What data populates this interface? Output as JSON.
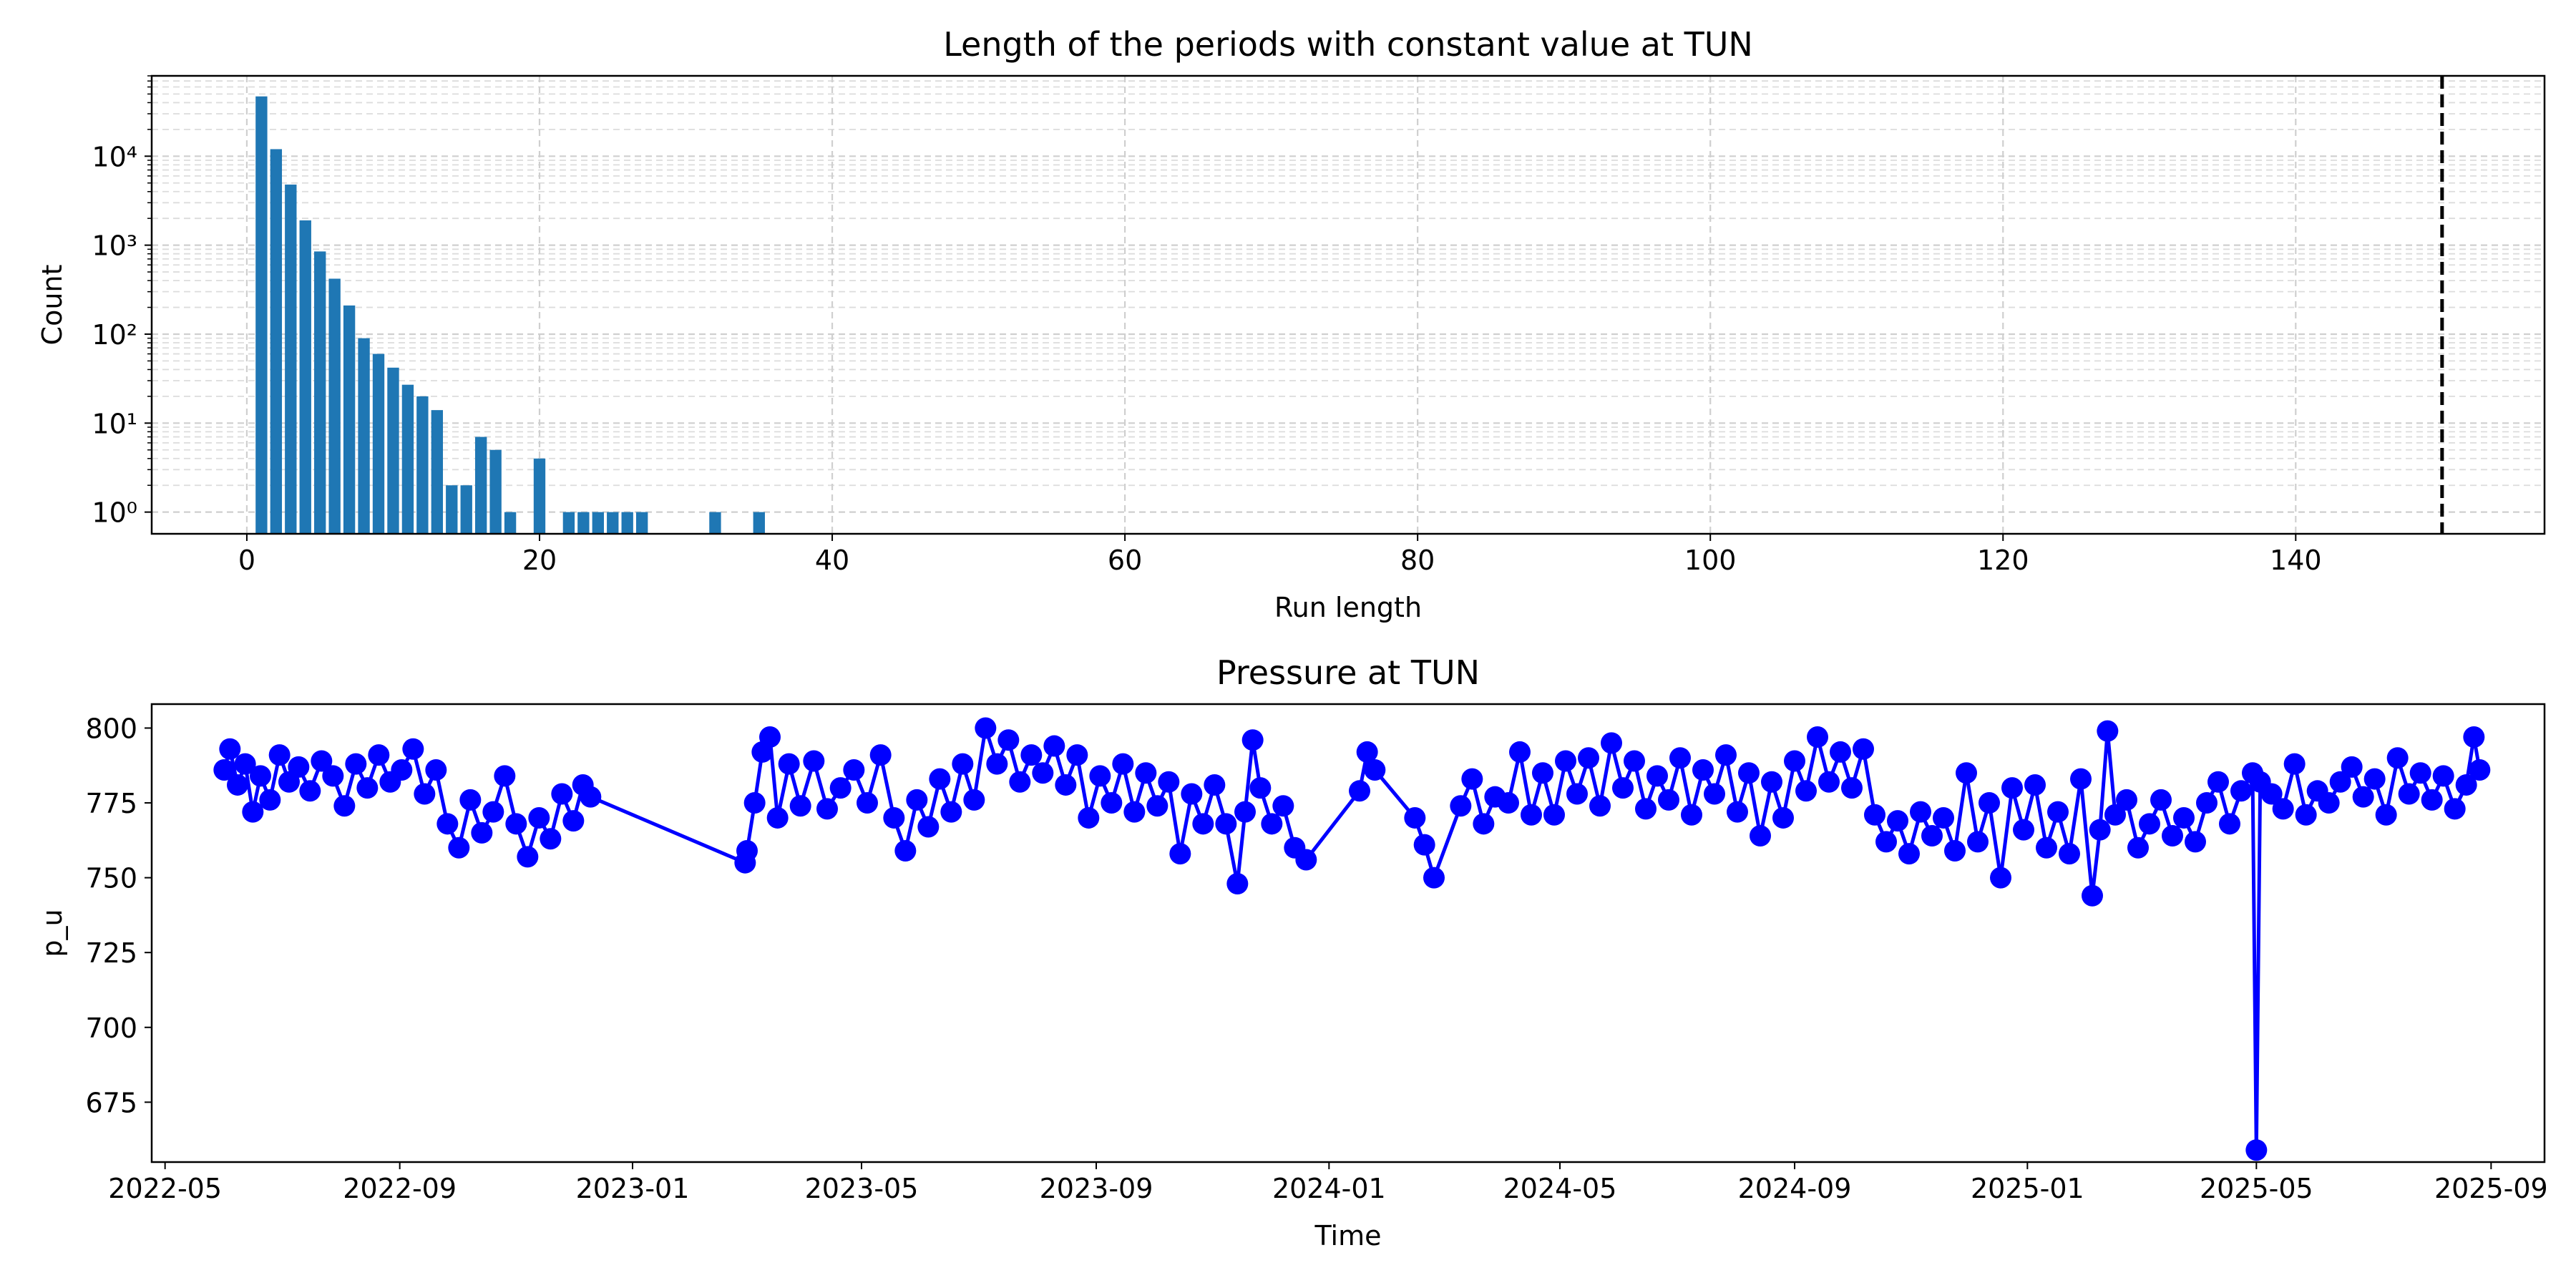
{
  "chart_data": [
    {
      "type": "bar",
      "title": "Length of the periods with constant value at TUN",
      "xlabel": "Run length",
      "ylabel": "Count",
      "yscale": "log",
      "xlim": [
        -6.5,
        157
      ],
      "ylim": [
        0.57,
        80000
      ],
      "xticks": [
        0,
        20,
        40,
        60,
        80,
        100,
        120,
        140
      ],
      "xtick_labels": [
        "0",
        "20",
        "40",
        "60",
        "80",
        "100",
        "120",
        "140"
      ],
      "yticks": [
        1,
        10,
        100,
        1000,
        10000
      ],
      "ytick_labels": [
        "10⁰",
        "10¹",
        "10²",
        "10³",
        "10⁴"
      ],
      "grid": "major and minor, dashed",
      "bar_color": "#1f77b4",
      "threshold_line": {
        "x": 150,
        "style": "dashed",
        "color": "#000000"
      },
      "bars": [
        {
          "x": 1,
          "value": 47000
        },
        {
          "x": 2,
          "value": 12000
        },
        {
          "x": 3,
          "value": 4800
        },
        {
          "x": 4,
          "value": 1900
        },
        {
          "x": 5,
          "value": 850
        },
        {
          "x": 6,
          "value": 420
        },
        {
          "x": 7,
          "value": 210
        },
        {
          "x": 8,
          "value": 90
        },
        {
          "x": 9,
          "value": 60
        },
        {
          "x": 10,
          "value": 42
        },
        {
          "x": 11,
          "value": 27
        },
        {
          "x": 12,
          "value": 20
        },
        {
          "x": 13,
          "value": 14
        },
        {
          "x": 14,
          "value": 2
        },
        {
          "x": 15,
          "value": 2
        },
        {
          "x": 16,
          "value": 7
        },
        {
          "x": 17,
          "value": 5
        },
        {
          "x": 18,
          "value": 1
        },
        {
          "x": 20,
          "value": 4
        },
        {
          "x": 22,
          "value": 1
        },
        {
          "x": 23,
          "value": 1
        },
        {
          "x": 24,
          "value": 1
        },
        {
          "x": 25,
          "value": 1
        },
        {
          "x": 26,
          "value": 1
        },
        {
          "x": 27,
          "value": 1
        },
        {
          "x": 32,
          "value": 1
        },
        {
          "x": 35,
          "value": 1
        }
      ]
    },
    {
      "type": "line",
      "title": "Pressure at TUN",
      "xlabel": "Time",
      "ylabel": "p_u",
      "xlim": [
        "2022-04-24",
        "2025-09-29"
      ],
      "ylim": [
        655,
        808
      ],
      "yticks": [
        675,
        700,
        725,
        750,
        775,
        800
      ],
      "ytick_labels": [
        "675",
        "700",
        "725",
        "750",
        "775",
        "800"
      ],
      "xticks": [
        "2022-05-01",
        "2022-09-01",
        "2023-01-01",
        "2023-05-01",
        "2023-09-01",
        "2024-01-01",
        "2024-05-01",
        "2024-09-01",
        "2025-01-01",
        "2025-05-01",
        "2025-09-01"
      ],
      "xtick_labels": [
        "2022-05",
        "2022-09",
        "2023-01",
        "2023-05",
        "2023-09",
        "2024-01",
        "2024-05",
        "2024-09",
        "2025-01",
        "2025-05",
        "2025-09"
      ],
      "grid": "off",
      "series": [
        {
          "color": "#0000ff",
          "marker": "o",
          "points": [
            [
              "2022-06-01",
              786
            ],
            [
              "2022-06-04",
              793
            ],
            [
              "2022-06-08",
              781
            ],
            [
              "2022-06-12",
              788
            ],
            [
              "2022-06-16",
              772
            ],
            [
              "2022-06-20",
              784
            ],
            [
              "2022-06-25",
              776
            ],
            [
              "2022-06-30",
              791
            ],
            [
              "2022-07-05",
              782
            ],
            [
              "2022-07-10",
              787
            ],
            [
              "2022-07-16",
              779
            ],
            [
              "2022-07-22",
              789
            ],
            [
              "2022-07-28",
              784
            ],
            [
              "2022-08-03",
              774
            ],
            [
              "2022-08-09",
              788
            ],
            [
              "2022-08-15",
              780
            ],
            [
              "2022-08-21",
              791
            ],
            [
              "2022-08-27",
              782
            ],
            [
              "2022-09-02",
              786
            ],
            [
              "2022-09-08",
              793
            ],
            [
              "2022-09-14",
              778
            ],
            [
              "2022-09-20",
              786
            ],
            [
              "2022-09-26",
              768
            ],
            [
              "2022-10-02",
              760
            ],
            [
              "2022-10-08",
              776
            ],
            [
              "2022-10-14",
              765
            ],
            [
              "2022-10-20",
              772
            ],
            [
              "2022-10-26",
              784
            ],
            [
              "2022-11-01",
              768
            ],
            [
              "2022-11-07",
              757
            ],
            [
              "2022-11-13",
              770
            ],
            [
              "2022-11-19",
              763
            ],
            [
              "2022-11-25",
              778
            ],
            [
              "2022-12-01",
              769
            ],
            [
              "2022-12-06",
              781
            ],
            [
              "2022-12-10",
              777
            ],
            [
              "2023-03-01",
              755
            ],
            [
              "2023-03-02",
              759
            ],
            [
              "2023-03-06",
              775
            ],
            [
              "2023-03-10",
              792
            ],
            [
              "2023-03-14",
              797
            ],
            [
              "2023-03-18",
              770
            ],
            [
              "2023-03-24",
              788
            ],
            [
              "2023-03-30",
              774
            ],
            [
              "2023-04-06",
              789
            ],
            [
              "2023-04-13",
              773
            ],
            [
              "2023-04-20",
              780
            ],
            [
              "2023-04-27",
              786
            ],
            [
              "2023-05-04",
              775
            ],
            [
              "2023-05-11",
              791
            ],
            [
              "2023-05-18",
              770
            ],
            [
              "2023-05-24",
              759
            ],
            [
              "2023-05-30",
              776
            ],
            [
              "2023-06-05",
              767
            ],
            [
              "2023-06-11",
              783
            ],
            [
              "2023-06-17",
              772
            ],
            [
              "2023-06-23",
              788
            ],
            [
              "2023-06-29",
              776
            ],
            [
              "2023-07-05",
              800
            ],
            [
              "2023-07-11",
              788
            ],
            [
              "2023-07-17",
              796
            ],
            [
              "2023-07-23",
              782
            ],
            [
              "2023-07-29",
              791
            ],
            [
              "2023-08-04",
              785
            ],
            [
              "2023-08-10",
              794
            ],
            [
              "2023-08-16",
              781
            ],
            [
              "2023-08-22",
              791
            ],
            [
              "2023-08-28",
              770
            ],
            [
              "2023-09-03",
              784
            ],
            [
              "2023-09-09",
              775
            ],
            [
              "2023-09-15",
              788
            ],
            [
              "2023-09-21",
              772
            ],
            [
              "2023-09-27",
              785
            ],
            [
              "2023-10-03",
              774
            ],
            [
              "2023-10-09",
              782
            ],
            [
              "2023-10-15",
              758
            ],
            [
              "2023-10-21",
              778
            ],
            [
              "2023-10-27",
              768
            ],
            [
              "2023-11-02",
              781
            ],
            [
              "2023-11-08",
              768
            ],
            [
              "2023-11-14",
              748
            ],
            [
              "2023-11-18",
              772
            ],
            [
              "2023-11-22",
              796
            ],
            [
              "2023-11-26",
              780
            ],
            [
              "2023-12-02",
              768
            ],
            [
              "2023-12-08",
              774
            ],
            [
              "2023-12-14",
              760
            ],
            [
              "2023-12-20",
              756
            ],
            [
              "2024-01-17",
              779
            ],
            [
              "2024-01-21",
              792
            ],
            [
              "2024-01-25",
              786
            ],
            [
              "2024-02-15",
              770
            ],
            [
              "2024-02-20",
              761
            ],
            [
              "2024-02-25",
              750
            ],
            [
              "2024-03-10",
              774
            ],
            [
              "2024-03-16",
              783
            ],
            [
              "2024-03-22",
              768
            ],
            [
              "2024-03-28",
              777
            ],
            [
              "2024-04-04",
              775
            ],
            [
              "2024-04-10",
              792
            ],
            [
              "2024-04-16",
              771
            ],
            [
              "2024-04-22",
              785
            ],
            [
              "2024-04-28",
              771
            ],
            [
              "2024-05-04",
              789
            ],
            [
              "2024-05-10",
              778
            ],
            [
              "2024-05-16",
              790
            ],
            [
              "2024-05-22",
              774
            ],
            [
              "2024-05-28",
              795
            ],
            [
              "2024-06-03",
              780
            ],
            [
              "2024-06-09",
              789
            ],
            [
              "2024-06-15",
              773
            ],
            [
              "2024-06-21",
              784
            ],
            [
              "2024-06-27",
              776
            ],
            [
              "2024-07-03",
              790
            ],
            [
              "2024-07-09",
              771
            ],
            [
              "2024-07-15",
              786
            ],
            [
              "2024-07-21",
              778
            ],
            [
              "2024-07-27",
              791
            ],
            [
              "2024-08-02",
              772
            ],
            [
              "2024-08-08",
              785
            ],
            [
              "2024-08-14",
              764
            ],
            [
              "2024-08-20",
              782
            ],
            [
              "2024-08-26",
              770
            ],
            [
              "2024-09-01",
              789
            ],
            [
              "2024-09-07",
              779
            ],
            [
              "2024-09-13",
              797
            ],
            [
              "2024-09-19",
              782
            ],
            [
              "2024-09-25",
              792
            ],
            [
              "2024-10-01",
              780
            ],
            [
              "2024-10-07",
              793
            ],
            [
              "2024-10-13",
              771
            ],
            [
              "2024-10-19",
              762
            ],
            [
              "2024-10-25",
              769
            ],
            [
              "2024-10-31",
              758
            ],
            [
              "2024-11-06",
              772
            ],
            [
              "2024-11-12",
              764
            ],
            [
              "2024-11-18",
              770
            ],
            [
              "2024-11-24",
              759
            ],
            [
              "2024-11-30",
              785
            ],
            [
              "2024-12-06",
              762
            ],
            [
              "2024-12-12",
              775
            ],
            [
              "2024-12-18",
              750
            ],
            [
              "2024-12-24",
              780
            ],
            [
              "2024-12-30",
              766
            ],
            [
              "2025-01-05",
              781
            ],
            [
              "2025-01-11",
              760
            ],
            [
              "2025-01-17",
              772
            ],
            [
              "2025-01-23",
              758
            ],
            [
              "2025-01-29",
              783
            ],
            [
              "2025-02-04",
              744
            ],
            [
              "2025-02-08",
              766
            ],
            [
              "2025-02-12",
              799
            ],
            [
              "2025-02-16",
              771
            ],
            [
              "2025-02-22",
              776
            ],
            [
              "2025-02-28",
              760
            ],
            [
              "2025-03-06",
              768
            ],
            [
              "2025-03-12",
              776
            ],
            [
              "2025-03-18",
              764
            ],
            [
              "2025-03-24",
              770
            ],
            [
              "2025-03-30",
              762
            ],
            [
              "2025-04-05",
              775
            ],
            [
              "2025-04-11",
              782
            ],
            [
              "2025-04-17",
              768
            ],
            [
              "2025-04-23",
              779
            ],
            [
              "2025-04-29",
              785
            ],
            [
              "2025-05-01",
              659
            ],
            [
              "2025-05-03",
              782
            ],
            [
              "2025-05-09",
              778
            ],
            [
              "2025-05-15",
              773
            ],
            [
              "2025-05-21",
              788
            ],
            [
              "2025-05-27",
              771
            ],
            [
              "2025-06-02",
              779
            ],
            [
              "2025-06-08",
              775
            ],
            [
              "2025-06-14",
              782
            ],
            [
              "2025-06-20",
              787
            ],
            [
              "2025-06-26",
              777
            ],
            [
              "2025-07-02",
              783
            ],
            [
              "2025-07-08",
              771
            ],
            [
              "2025-07-14",
              790
            ],
            [
              "2025-07-20",
              778
            ],
            [
              "2025-07-26",
              785
            ],
            [
              "2025-08-01",
              776
            ],
            [
              "2025-08-07",
              784
            ],
            [
              "2025-08-13",
              773
            ],
            [
              "2025-08-19",
              781
            ],
            [
              "2025-08-23",
              797
            ],
            [
              "2025-08-26",
              786
            ]
          ]
        }
      ]
    }
  ]
}
